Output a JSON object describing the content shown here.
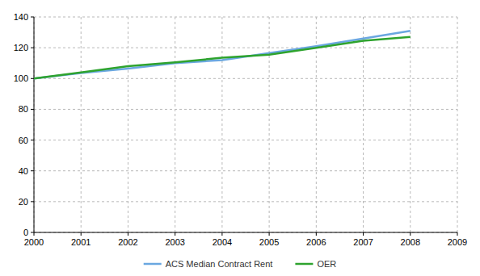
{
  "chart_data": {
    "type": "line",
    "x": [
      2000,
      2001,
      2002,
      2003,
      2004,
      2005,
      2006,
      2007,
      2008
    ],
    "series": [
      {
        "name": "ACS Median Contract Rent",
        "color": "#6aa7e0",
        "values": [
          100,
          103.5,
          106.5,
          110,
          112,
          116.5,
          121,
          126,
          131
        ]
      },
      {
        "name": "OER",
        "color": "#2ea32e",
        "values": [
          100,
          104,
          108,
          110.5,
          113.5,
          115.5,
          120,
          124.5,
          127
        ]
      }
    ],
    "xlim": [
      2000,
      2009
    ],
    "xticks": [
      2000,
      2001,
      2002,
      2003,
      2004,
      2005,
      2006,
      2007,
      2008,
      2009
    ],
    "ylim": [
      0,
      140
    ],
    "yticks": [
      0,
      20,
      40,
      60,
      80,
      100,
      120,
      140
    ],
    "grid": true,
    "legend": "bottom"
  }
}
